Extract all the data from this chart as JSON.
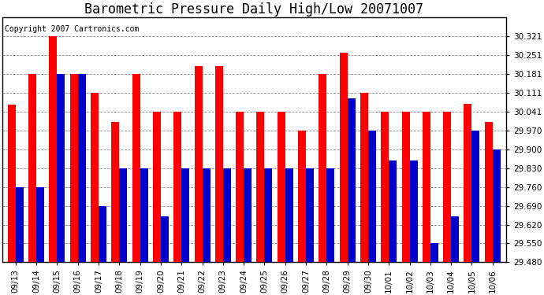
{
  "title": "Barometric Pressure Daily High/Low 20071007",
  "copyright": "Copyright 2007 Cartronics.com",
  "dates": [
    "09/13",
    "09/14",
    "09/15",
    "09/16",
    "09/17",
    "09/18",
    "09/19",
    "09/20",
    "09/21",
    "09/22",
    "09/23",
    "09/24",
    "09/25",
    "09/26",
    "09/27",
    "09/28",
    "09/29",
    "09/30",
    "10/01",
    "10/02",
    "10/03",
    "10/04",
    "10/05",
    "10/06"
  ],
  "highs": [
    30.068,
    30.181,
    30.321,
    30.181,
    30.111,
    30.001,
    30.181,
    30.041,
    30.041,
    30.211,
    30.211,
    30.041,
    30.041,
    30.041,
    29.971,
    30.181,
    30.261,
    30.111,
    30.041,
    30.041,
    30.041,
    30.041,
    30.071,
    30.001
  ],
  "lows": [
    29.76,
    29.76,
    30.181,
    30.181,
    29.69,
    29.83,
    29.83,
    29.65,
    29.83,
    29.83,
    29.83,
    29.83,
    29.83,
    29.83,
    29.83,
    29.83,
    30.091,
    29.971,
    29.86,
    29.86,
    29.551,
    29.65,
    29.971,
    29.9
  ],
  "high_color": "#ff0000",
  "low_color": "#0000cc",
  "background_color": "#ffffff",
  "plot_bg_color": "#ffffff",
  "grid_color": "#888888",
  "ylim_min": 29.48,
  "ylim_max": 30.391,
  "ytick_values": [
    29.48,
    29.55,
    29.62,
    29.69,
    29.76,
    29.83,
    29.9,
    29.97,
    30.041,
    30.111,
    30.181,
    30.251,
    30.321
  ],
  "bar_width": 0.38,
  "title_fontsize": 12,
  "copyright_fontsize": 7,
  "tick_fontsize": 7.5
}
